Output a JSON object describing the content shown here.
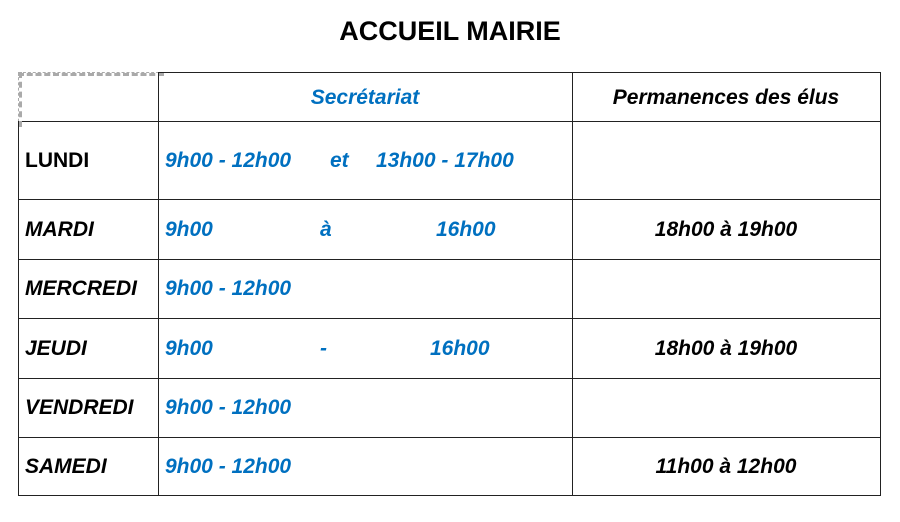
{
  "title": "ACCUEIL MAIRIE",
  "headers": {
    "secretariat": "Secrétariat",
    "permanences": "Permanences des élus"
  },
  "colors": {
    "accent": "#0070c0",
    "text": "#000000"
  },
  "rows": [
    {
      "day": "LUNDI",
      "parts": [
        "9h00 - 12h00",
        "et",
        "13h00 - 17h00"
      ],
      "permanence": ""
    },
    {
      "day": "MARDI",
      "parts": [
        "9h00",
        "à",
        "16h00"
      ],
      "permanence": "18h00 à 19h00"
    },
    {
      "day": "MERCREDI",
      "parts": [
        "9h00 - 12h00"
      ],
      "permanence": ""
    },
    {
      "day": "JEUDI",
      "parts": [
        "9h00",
        "-",
        "16h00"
      ],
      "permanence": "18h00 à 19h00"
    },
    {
      "day": "VENDREDI",
      "parts": [
        "9h00 - 12h00"
      ],
      "permanence": ""
    },
    {
      "day": "SAMEDI",
      "parts": [
        "9h00 - 12h00"
      ],
      "permanence": "11h00 à 12h00"
    }
  ]
}
